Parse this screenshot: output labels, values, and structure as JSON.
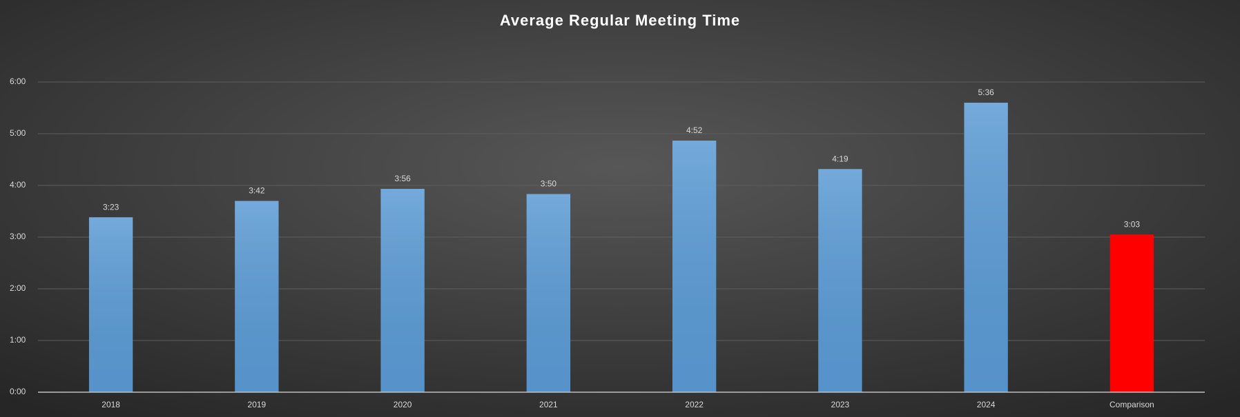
{
  "chart_data": {
    "type": "bar",
    "title": "Average Regular Meeting Time",
    "categories": [
      "2018",
      "2019",
      "2020",
      "2021",
      "2022",
      "2023",
      "2024",
      "Comparison"
    ],
    "values": [
      203,
      222,
      236,
      230,
      292,
      259,
      336,
      183
    ],
    "value_labels": [
      "3:23",
      "3:42",
      "3:56",
      "3:50",
      "4:52",
      "4:19",
      "5:36",
      "3:03"
    ],
    "colors": [
      "#5b9bd5",
      "#5b9bd5",
      "#5b9bd5",
      "#5b9bd5",
      "#5b9bd5",
      "#5b9bd5",
      "#5b9bd5",
      "#ff0000"
    ],
    "ylim": [
      0,
      360
    ],
    "yticks": [
      {
        "value": 0,
        "label": "0:00"
      },
      {
        "value": 60,
        "label": "1:00"
      },
      {
        "value": 120,
        "label": "2:00"
      },
      {
        "value": 180,
        "label": "3:00"
      },
      {
        "value": 240,
        "label": "4:00"
      },
      {
        "value": 300,
        "label": "5:00"
      },
      {
        "value": 360,
        "label": "6:00"
      }
    ],
    "grid": true
  }
}
